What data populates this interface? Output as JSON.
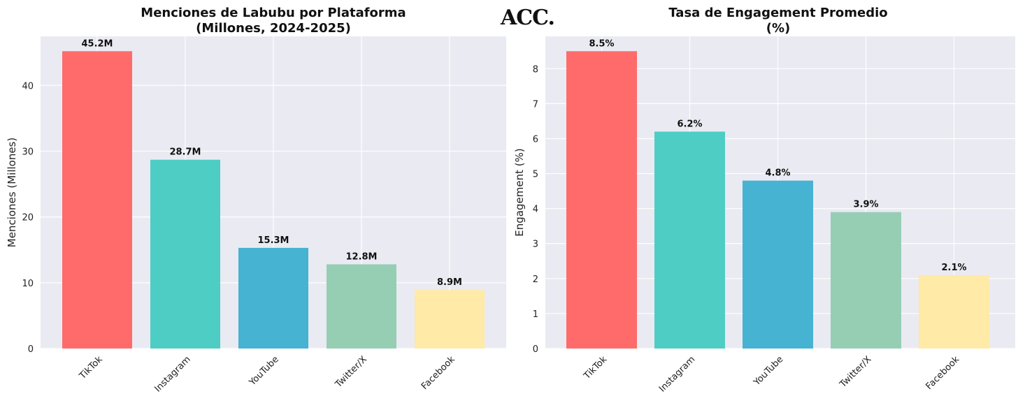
{
  "logo_text": "ACC.",
  "colors": [
    "#ff6b6b",
    "#4ecdc4",
    "#45b3d1",
    "#96ceb4",
    "#ffeaa7"
  ],
  "chart_data": [
    {
      "type": "bar",
      "title_line1": "Menciones de Labubu por Plataforma",
      "title_line2": "(Millones, 2024-2025)",
      "xlabel": "",
      "ylabel": "Menciones (Millones)",
      "categories": [
        "TikTok",
        "Instagram",
        "YouTube",
        "Twitter/X",
        "Facebook"
      ],
      "values": [
        45.2,
        28.7,
        15.3,
        12.8,
        8.9
      ],
      "value_labels": [
        "45.2M",
        "28.7M",
        "15.3M",
        "12.8M",
        "8.9M"
      ],
      "yticks": [
        0,
        10,
        20,
        30,
        40
      ],
      "ylim": [
        0,
        47.46
      ],
      "grid": true
    },
    {
      "type": "bar",
      "title_line1": "Tasa de Engagement Promedio",
      "title_line2": "(%)",
      "xlabel": "",
      "ylabel": "Engagement (%)",
      "categories": [
        "TikTok",
        "Instagram",
        "YouTube",
        "Twitter/X",
        "Facebook"
      ],
      "values": [
        8.5,
        6.2,
        4.8,
        3.9,
        2.1
      ],
      "value_labels": [
        "8.5%",
        "6.2%",
        "4.8%",
        "3.9%",
        "2.1%"
      ],
      "yticks": [
        0,
        1,
        2,
        3,
        4,
        5,
        6,
        7,
        8
      ],
      "ylim": [
        0,
        8.925
      ],
      "grid": true
    }
  ]
}
